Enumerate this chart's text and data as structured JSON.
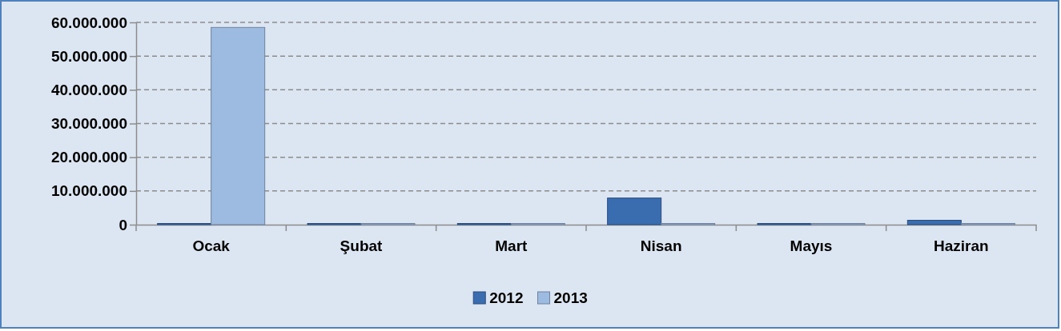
{
  "chart_data": {
    "type": "bar",
    "categories": [
      "Ocak",
      "Şubat",
      "Mart",
      "Nisan",
      "Mayıs",
      "Haziran"
    ],
    "series": [
      {
        "name": "2012",
        "color": "#3a6cb0",
        "values": [
          0,
          200000,
          300000,
          7900000,
          0,
          1300000
        ]
      },
      {
        "name": "2013",
        "color": "#9dbae0",
        "values": [
          58500000,
          200000,
          200000,
          200000,
          100000,
          100000
        ]
      }
    ],
    "ylim": [
      0,
      60000000
    ],
    "yticks": [
      {
        "value": 0,
        "label": "0"
      },
      {
        "value": 10000000,
        "label": "10.000.000"
      },
      {
        "value": 20000000,
        "label": "20.000.000"
      },
      {
        "value": 30000000,
        "label": "30.000.000"
      },
      {
        "value": 40000000,
        "label": "40.000.000"
      },
      {
        "value": 50000000,
        "label": "50.000.000"
      },
      {
        "value": 60000000,
        "label": "60.000.000"
      }
    ],
    "grid": "y",
    "legend": "bottom"
  }
}
